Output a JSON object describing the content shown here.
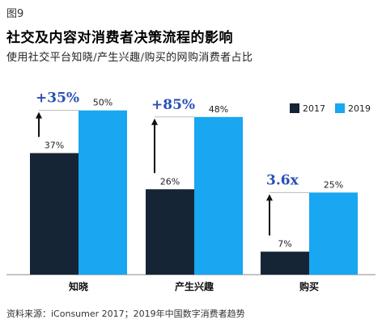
{
  "figure_label": "图9",
  "chart_data": {
    "type": "bar",
    "title": "社交及内容对消费者决策流程的影响",
    "subtitle": "使用社交平台知晓/产生兴趣/购买的网购消费者占比",
    "categories": [
      "知晓",
      "产生兴趣",
      "购买"
    ],
    "series": [
      {
        "name": "2017",
        "values": [
          37,
          26,
          7
        ],
        "labels": [
          "37%",
          "26%",
          "7%"
        ]
      },
      {
        "name": "2019",
        "values": [
          50,
          48,
          25
        ],
        "labels": [
          "50%",
          "48%",
          "25%"
        ]
      }
    ],
    "growth_labels": [
      "+35%",
      "+85%",
      "3.6x"
    ],
    "ylim": [
      0,
      60
    ],
    "legend_placement": "top-right",
    "grid": false,
    "colors": {
      "2017": "#152536",
      "2019": "#18a7f0",
      "growth_text": "#2b4fb5",
      "arrow": "#111111"
    }
  },
  "source_note": "资料来源：iConsumer 2017；2019年中国数字消费者趋势"
}
